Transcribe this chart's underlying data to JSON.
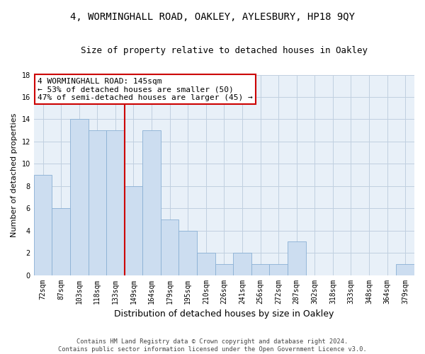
{
  "title": "4, WORMINGHALL ROAD, OAKLEY, AYLESBURY, HP18 9QY",
  "subtitle": "Size of property relative to detached houses in Oakley",
  "xlabel": "Distribution of detached houses by size in Oakley",
  "ylabel": "Number of detached properties",
  "categories": [
    "72sqm",
    "87sqm",
    "103sqm",
    "118sqm",
    "133sqm",
    "149sqm",
    "164sqm",
    "179sqm",
    "195sqm",
    "210sqm",
    "226sqm",
    "241sqm",
    "256sqm",
    "272sqm",
    "287sqm",
    "302sqm",
    "318sqm",
    "333sqm",
    "348sqm",
    "364sqm",
    "379sqm"
  ],
  "values": [
    9,
    6,
    14,
    13,
    13,
    8,
    13,
    5,
    4,
    2,
    1,
    2,
    1,
    1,
    3,
    0,
    0,
    0,
    0,
    0,
    1
  ],
  "bar_color": "#ccddf0",
  "bar_edgecolor": "#8ab0d4",
  "vline_x_index": 5,
  "vline_color": "#cc0000",
  "annotation_text": "4 WORMINGHALL ROAD: 145sqm\n← 53% of detached houses are smaller (50)\n47% of semi-detached houses are larger (45) →",
  "annotation_box_edgecolor": "#cc0000",
  "ylim": [
    0,
    18
  ],
  "yticks": [
    0,
    2,
    4,
    6,
    8,
    10,
    12,
    14,
    16,
    18
  ],
  "footer1": "Contains HM Land Registry data © Crown copyright and database right 2024.",
  "footer2": "Contains public sector information licensed under the Open Government Licence v3.0.",
  "bg_color": "#ffffff",
  "plot_bg_color": "#e8f0f8",
  "grid_color": "#c0d0e0",
  "title_fontsize": 10,
  "subtitle_fontsize": 9,
  "ylabel_fontsize": 8,
  "xlabel_fontsize": 9,
  "tick_fontsize": 7,
  "annotation_fontsize": 8
}
